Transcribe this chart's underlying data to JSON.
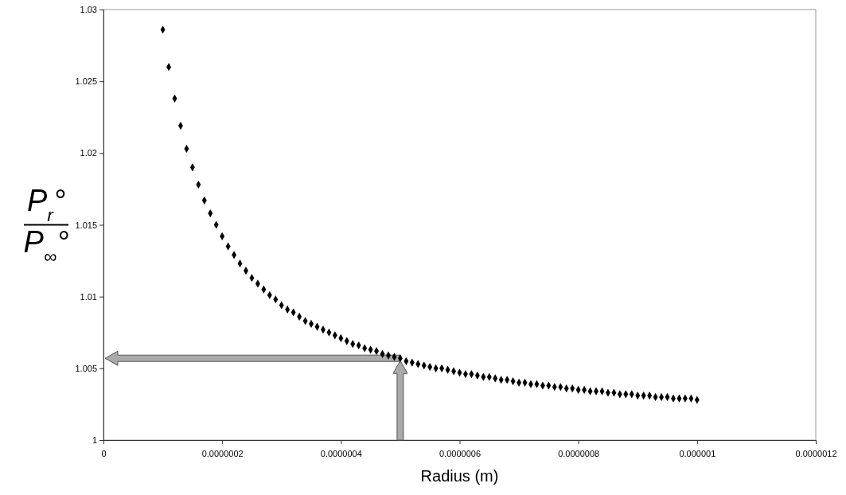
{
  "chart_data": {
    "type": "scatter",
    "xlabel": "Radius (m)",
    "ylabel": "P$_{r}$° P$_{∞}$°",
    "x": [
      1e-07,
      1.1e-07,
      1.2e-07,
      1.3e-07,
      1.4e-07,
      1.5e-07,
      1.6e-07,
      1.7e-07,
      1.8e-07,
      1.9e-07,
      2e-07,
      2.1e-07,
      2.2e-07,
      2.3e-07,
      2.4e-07,
      2.5e-07,
      2.6e-07,
      2.7e-07,
      2.8e-07,
      2.9e-07,
      3e-07,
      3.1e-07,
      3.2e-07,
      3.3e-07,
      3.4e-07,
      3.5e-07,
      3.6e-07,
      3.7e-07,
      3.8e-07,
      3.9e-07,
      4e-07,
      4.1e-07,
      4.2e-07,
      4.3e-07,
      4.4e-07,
      4.5e-07,
      4.6e-07,
      4.7e-07,
      4.8e-07,
      4.9e-07,
      5e-07,
      5.1e-07,
      5.2e-07,
      5.3e-07,
      5.4e-07,
      5.5e-07,
      5.6e-07,
      5.7e-07,
      5.8e-07,
      5.9e-07,
      6e-07,
      6.1e-07,
      6.2e-07,
      6.3e-07,
      6.4e-07,
      6.5e-07,
      6.6e-07,
      6.7e-07,
      6.8e-07,
      6.9e-07,
      7e-07,
      7.1e-07,
      7.2e-07,
      7.3e-07,
      7.4e-07,
      7.5e-07,
      7.6e-07,
      7.7e-07,
      7.8e-07,
      7.9e-07,
      8e-07,
      8.1e-07,
      8.2e-07,
      8.3e-07,
      8.4e-07,
      8.5e-07,
      8.6e-07,
      8.7e-07,
      8.8e-07,
      8.9e-07,
      9e-07,
      9.1e-07,
      9.2e-07,
      9.3e-07,
      9.4e-07,
      9.5e-07,
      9.6e-07,
      9.7e-07,
      9.8e-07,
      9.9e-07,
      1e-06
    ],
    "series": [
      {
        "color": "#000000",
        "values": [
          1.0286,
          1.026,
          1.0238,
          1.0219,
          1.0203,
          1.019,
          1.0178,
          1.0167,
          1.0158,
          1.015,
          1.0142,
          1.0135,
          1.0129,
          1.0123,
          1.0118,
          1.0113,
          1.0109,
          1.0105,
          1.0101,
          1.0098,
          1.0094,
          1.0091,
          1.0089,
          1.0086,
          1.0083,
          1.0081,
          1.0079,
          1.0077,
          1.0075,
          1.0073,
          1.0071,
          1.0069,
          1.0067,
          1.0066,
          1.0064,
          1.0063,
          1.0062,
          1.006,
          1.0059,
          1.0058,
          1.0057,
          1.0055,
          1.0054,
          1.0053,
          1.0052,
          1.0051,
          1.005,
          1.005,
          1.0049,
          1.0048,
          1.0047,
          1.0046,
          1.0046,
          1.0045,
          1.0044,
          1.0044,
          1.0043,
          1.0042,
          1.0042,
          1.0041,
          1.004,
          1.004,
          1.0039,
          1.0039,
          1.0038,
          1.0038,
          1.0037,
          1.0037,
          1.0036,
          1.0036,
          1.0035,
          1.0035,
          1.0034,
          1.0034,
          1.0034,
          1.0033,
          1.0033,
          1.0032,
          1.0032,
          1.0032,
          1.0031,
          1.0031,
          1.0031,
          1.003,
          1.003,
          1.003,
          1.0029,
          1.0029,
          1.0029,
          1.0029,
          1.0028
        ]
      }
    ],
    "xlim": [
      0,
      1.2e-06
    ],
    "xticks": [
      0,
      {
        "value": 2e-07,
        "label": "0.0000002"
      },
      {
        "value": 4e-07,
        "label": "0.0000004"
      },
      {
        "value": 6e-07,
        "label": "0.0000006"
      },
      {
        "value": 8e-07,
        "label": "0.0000008"
      },
      {
        "value": 1e-06,
        "label": "0.000001"
      },
      {
        "value": 1.2e-06,
        "label": "0.0000012"
      }
    ],
    "ylim": [
      1,
      1.03
    ],
    "yticks": [
      1,
      1.005,
      1.01,
      1.015,
      1.02,
      1.025,
      1.03
    ],
    "grid": false,
    "marker": "diamond"
  }
}
